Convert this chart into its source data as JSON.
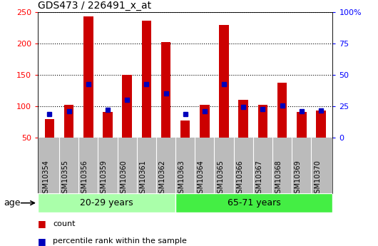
{
  "title": "GDS473 / 226491_x_at",
  "samples": [
    "GSM10354",
    "GSM10355",
    "GSM10356",
    "GSM10359",
    "GSM10360",
    "GSM10361",
    "GSM10362",
    "GSM10363",
    "GSM10364",
    "GSM10365",
    "GSM10366",
    "GSM10367",
    "GSM10368",
    "GSM10369",
    "GSM10370"
  ],
  "count": [
    80,
    103,
    243,
    91,
    150,
    237,
    203,
    77,
    103,
    230,
    110,
    103,
    138,
    91,
    93
  ],
  "percentile_left_axis": [
    88,
    92,
    136,
    94,
    110,
    135,
    121,
    88,
    92,
    136,
    99,
    96,
    101,
    92,
    93
  ],
  "group1_label": "20-29 years",
  "group2_label": "65-71 years",
  "group1_count": 7,
  "group2_count": 8,
  "group1_color": "#AAFFAA",
  "group2_color": "#44EE44",
  "bar_color": "#CC0000",
  "dot_color": "#0000BB",
  "ylim_left": [
    50,
    250
  ],
  "ylim_right": [
    0,
    100
  ],
  "yticks_left": [
    50,
    100,
    150,
    200,
    250
  ],
  "yticks_right": [
    0,
    25,
    50,
    75,
    100
  ],
  "ytick_labels_left": [
    "50",
    "100",
    "150",
    "200",
    "250"
  ],
  "ytick_labels_right": [
    "0",
    "25",
    "50",
    "75",
    "100%"
  ],
  "legend_count": "count",
  "legend_percentile": "percentile rank within the sample",
  "age_label": "age",
  "bar_width": 0.5,
  "plot_bg": "#FFFFFF",
  "xtick_bg": "#BBBBBB"
}
